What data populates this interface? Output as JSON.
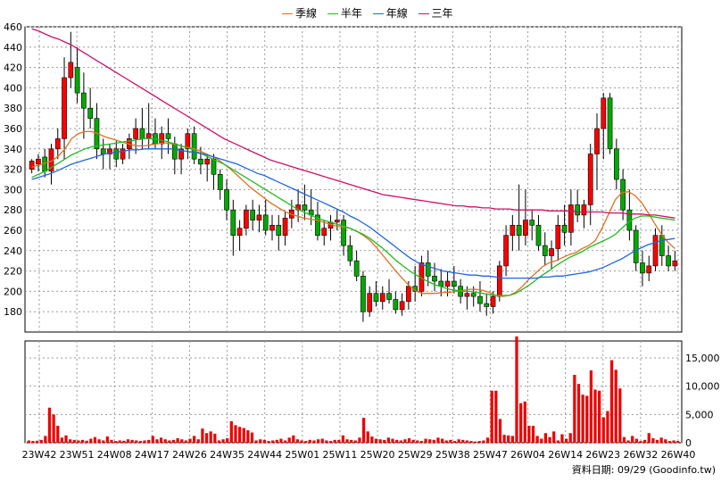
{
  "legend": {
    "ma_quarter": "季線",
    "ma_half": "半年",
    "ma_year": "年線",
    "ma_3y": "三年"
  },
  "source_label": "資料日期: 09/29 (Goodinfo.tw)",
  "colors": {
    "up": "#ff0000",
    "down": "#00aa00",
    "ma_quarter": "#e07020",
    "ma_half": "#22bb22",
    "ma_year": "#2266dd",
    "ma_3y": "#cc1166",
    "volume": "#ee0000",
    "grid": "#999999"
  },
  "chart_data": [
    {
      "type": "line",
      "title": "",
      "x_ticks": [
        "23W42",
        "23W51",
        "24W08",
        "24W17",
        "24W26",
        "24W35",
        "24W44",
        "25W01",
        "25W11",
        "25W20",
        "25W29",
        "25W38",
        "25W47",
        "26W04",
        "26W14",
        "26W23",
        "26W32",
        "26W40"
      ],
      "y_ticks": [
        180,
        200,
        220,
        240,
        260,
        280,
        300,
        320,
        340,
        360,
        380,
        400,
        420,
        440,
        460
      ],
      "ylim": [
        160,
        460
      ],
      "grid": true,
      "legend_position": "top",
      "candles_note": "weekly OHLC candlesticks",
      "candles": [
        [
          320,
          330,
          316,
          328
        ],
        [
          325,
          335,
          318,
          330
        ],
        [
          332,
          340,
          312,
          318
        ],
        [
          318,
          345,
          305,
          340
        ],
        [
          340,
          360,
          330,
          350
        ],
        [
          350,
          430,
          330,
          410
        ],
        [
          410,
          455,
          400,
          425
        ],
        [
          420,
          440,
          385,
          395
        ],
        [
          395,
          415,
          350,
          380
        ],
        [
          380,
          400,
          360,
          370
        ],
        [
          370,
          385,
          330,
          340
        ],
        [
          340,
          350,
          320,
          335
        ],
        [
          335,
          345,
          320,
          340
        ],
        [
          340,
          348,
          322,
          330
        ],
        [
          330,
          345,
          325,
          340
        ],
        [
          340,
          355,
          330,
          350
        ],
        [
          350,
          370,
          335,
          360
        ],
        [
          360,
          380,
          340,
          350
        ],
        [
          350,
          385,
          340,
          355
        ],
        [
          355,
          370,
          340,
          345
        ],
        [
          345,
          362,
          330,
          355
        ],
        [
          355,
          370,
          335,
          350
        ],
        [
          345,
          352,
          315,
          330
        ],
        [
          330,
          345,
          315,
          340
        ],
        [
          340,
          360,
          330,
          355
        ],
        [
          355,
          362,
          325,
          330
        ],
        [
          330,
          342,
          315,
          325
        ],
        [
          325,
          335,
          308,
          330
        ],
        [
          330,
          335,
          300,
          315
        ],
        [
          315,
          320,
          290,
          300
        ],
        [
          300,
          310,
          270,
          280
        ],
        [
          280,
          290,
          235,
          255
        ],
        [
          255,
          270,
          240,
          262
        ],
        [
          262,
          285,
          255,
          280
        ],
        [
          280,
          290,
          260,
          270
        ],
        [
          270,
          285,
          258,
          275
        ],
        [
          275,
          290,
          255,
          260
        ],
        [
          260,
          275,
          250,
          265
        ],
        [
          265,
          275,
          240,
          255
        ],
        [
          255,
          278,
          245,
          272
        ],
        [
          272,
          290,
          262,
          280
        ],
        [
          280,
          300,
          268,
          285
        ],
        [
          285,
          305,
          270,
          280
        ],
        [
          280,
          300,
          265,
          275
        ],
        [
          275,
          288,
          250,
          255
        ],
        [
          255,
          270,
          245,
          262
        ],
        [
          262,
          275,
          250,
          268
        ],
        [
          268,
          280,
          260,
          270
        ],
        [
          270,
          275,
          235,
          245
        ],
        [
          245,
          255,
          225,
          230
        ],
        [
          230,
          240,
          210,
          215
        ],
        [
          215,
          220,
          170,
          180
        ],
        [
          180,
          205,
          175,
          198
        ],
        [
          198,
          210,
          185,
          190
        ],
        [
          190,
          205,
          182,
          198
        ],
        [
          198,
          212,
          188,
          192
        ],
        [
          192,
          200,
          178,
          182
        ],
        [
          182,
          198,
          176,
          190
        ],
        [
          190,
          210,
          182,
          205
        ],
        [
          205,
          225,
          190,
          200
        ],
        [
          200,
          235,
          195,
          228
        ],
        [
          228,
          240,
          205,
          215
        ],
        [
          215,
          228,
          200,
          210
        ],
        [
          210,
          222,
          195,
          205
        ],
        [
          205,
          220,
          195,
          210
        ],
        [
          210,
          225,
          198,
          205
        ],
        [
          205,
          212,
          188,
          195
        ],
        [
          195,
          205,
          182,
          198
        ],
        [
          198,
          205,
          185,
          195
        ],
        [
          195,
          210,
          180,
          188
        ],
        [
          188,
          198,
          176,
          185
        ],
        [
          185,
          200,
          178,
          195
        ],
        [
          195,
          230,
          190,
          225
        ],
        [
          225,
          265,
          215,
          255
        ],
        [
          255,
          275,
          240,
          265
        ],
        [
          265,
          305,
          240,
          255
        ],
        [
          255,
          300,
          245,
          270
        ],
        [
          270,
          280,
          250,
          265
        ],
        [
          265,
          275,
          240,
          245
        ],
        [
          245,
          258,
          225,
          235
        ],
        [
          235,
          250,
          222,
          242
        ],
        [
          242,
          275,
          230,
          265
        ],
        [
          265,
          285,
          245,
          258
        ],
        [
          258,
          300,
          245,
          285
        ],
        [
          285,
          300,
          268,
          275
        ],
        [
          275,
          290,
          262,
          285
        ],
        [
          285,
          345,
          265,
          335
        ],
        [
          335,
          375,
          300,
          360
        ],
        [
          360,
          395,
          330,
          390
        ],
        [
          390,
          395,
          335,
          340
        ],
        [
          340,
          350,
          300,
          310
        ],
        [
          310,
          320,
          270,
          280
        ],
        [
          280,
          300,
          250,
          260
        ],
        [
          260,
          265,
          220,
          228
        ],
        [
          228,
          240,
          205,
          218
        ],
        [
          218,
          235,
          210,
          225
        ],
        [
          225,
          262,
          220,
          255
        ],
        [
          255,
          265,
          225,
          235
        ],
        [
          235,
          245,
          220,
          225
        ],
        [
          225,
          240,
          220,
          230
        ]
      ],
      "series": [
        {
          "name": "季線",
          "values": [
            322,
            324,
            326,
            328,
            333,
            340,
            350,
            355,
            357,
            357,
            355,
            352,
            350,
            348,
            346,
            344,
            343,
            343,
            344,
            345,
            346,
            345,
            344,
            342,
            341,
            339,
            336,
            333,
            330,
            325,
            320,
            314,
            308,
            302,
            297,
            292,
            287,
            283,
            279,
            276,
            274,
            272,
            271,
            270,
            268,
            266,
            264,
            263,
            262,
            259,
            255,
            250,
            243,
            235,
            227,
            219,
            212,
            205,
            200,
            198,
            198,
            198,
            199,
            199,
            200,
            201,
            202,
            202,
            201,
            199,
            196,
            195,
            196,
            199,
            205,
            212,
            218,
            224,
            228,
            230,
            233,
            236,
            238,
            242,
            245,
            250,
            262,
            276,
            290,
            297,
            298,
            294,
            287,
            277,
            266,
            256,
            248,
            242
          ]
        },
        {
          "name": "半年",
          "values": [
            312,
            315,
            318,
            322,
            326,
            330,
            334,
            337,
            340,
            342,
            343,
            344,
            345,
            346,
            347,
            348,
            349,
            350,
            350,
            349,
            348,
            346,
            344,
            342,
            340,
            337,
            334,
            331,
            328,
            325,
            321,
            317,
            313,
            309,
            305,
            301,
            297,
            293,
            289,
            285,
            281,
            278,
            275,
            272,
            270,
            268,
            266,
            264,
            262,
            259,
            256,
            252,
            247,
            242,
            236,
            230,
            225,
            220,
            216,
            212,
            209,
            206,
            204,
            202,
            201,
            200,
            200,
            199,
            198,
            197,
            196,
            196,
            196,
            198,
            202,
            206,
            211,
            216,
            220,
            225,
            229,
            233,
            236,
            239,
            243,
            246,
            249,
            252,
            256,
            262,
            268,
            272,
            274,
            274,
            273,
            272,
            271,
            270
          ]
        },
        {
          "name": "年線",
          "values": [
            310,
            312,
            314,
            316,
            319,
            322,
            325,
            327,
            329,
            331,
            333,
            335,
            336,
            337,
            338,
            339,
            339,
            340,
            340,
            340,
            340,
            340,
            339,
            338,
            337,
            336,
            335,
            333,
            331,
            329,
            327,
            325,
            322,
            319,
            316,
            314,
            311,
            308,
            305,
            302,
            299,
            296,
            293,
            290,
            287,
            284,
            281,
            278,
            274,
            271,
            267,
            263,
            258,
            253,
            248,
            243,
            238,
            233,
            229,
            226,
            224,
            222,
            220,
            219,
            218,
            217,
            216,
            216,
            215,
            215,
            214,
            213,
            213,
            213,
            213,
            213,
            213,
            214,
            214,
            215,
            215,
            216,
            217,
            218,
            219,
            221,
            223,
            226,
            229,
            232,
            236,
            240,
            243,
            246,
            248,
            250,
            251,
            252
          ]
        },
        {
          "name": "三年",
          "values": [
            458,
            456,
            453,
            450,
            448,
            445,
            442,
            438,
            434,
            430,
            426,
            422,
            418,
            414,
            410,
            406,
            402,
            398,
            394,
            390,
            386,
            382,
            378,
            374,
            370,
            366,
            362,
            358,
            354,
            350,
            347,
            344,
            341,
            338,
            335,
            332,
            329,
            327,
            325,
            323,
            321,
            319,
            317,
            315,
            313,
            311,
            309,
            307,
            305,
            303,
            301,
            299,
            297,
            295,
            294,
            293,
            292,
            291,
            290,
            289,
            288,
            287,
            286,
            285,
            284,
            284,
            283,
            283,
            282,
            282,
            281,
            281,
            281,
            280,
            280,
            280,
            280,
            280,
            279,
            279,
            279,
            279,
            278,
            278,
            278,
            278,
            278,
            277,
            277,
            277,
            276,
            276,
            276,
            275,
            275,
            274,
            273,
            272
          ]
        }
      ]
    },
    {
      "type": "bar",
      "title": "",
      "y_ticks": [
        0,
        5000,
        10000,
        15000
      ],
      "y_tick_labels": [
        "0",
        "5,000",
        "10,000",
        "15,000"
      ],
      "ylim": [
        0,
        18000
      ],
      "grid": true,
      "values": [
        400,
        300,
        350,
        500,
        1200,
        6200,
        5000,
        3000,
        900,
        1300,
        600,
        500,
        400,
        500,
        350,
        700,
        1000,
        600,
        400,
        1100,
        500,
        300,
        400,
        350,
        600,
        500,
        400,
        300,
        400,
        500,
        1200,
        600,
        900,
        600,
        400,
        500,
        800,
        600,
        400,
        700,
        1200,
        600,
        2500,
        1700,
        2000,
        1600,
        400,
        600,
        800,
        3800,
        3100,
        2800,
        2600,
        2200,
        1800,
        400,
        600,
        500,
        300,
        400,
        500,
        700,
        400,
        900,
        1300,
        600,
        400,
        300,
        500,
        400,
        600,
        700,
        400,
        300,
        500,
        500,
        1300,
        600,
        500,
        400,
        900,
        4400,
        2000,
        1100,
        700,
        600,
        500,
        900,
        700,
        500,
        400,
        600,
        800,
        500,
        400,
        300,
        700,
        600,
        500,
        900,
        700,
        400,
        500,
        300,
        600,
        500,
        400,
        300,
        200,
        300,
        400,
        900,
        9200,
        9200,
        4200,
        1400,
        1300,
        1200,
        18800,
        7000,
        7300,
        3000,
        3000,
        1200,
        700,
        1700,
        1000,
        2000,
        400,
        1500,
        700,
        1700,
        12000,
        10400,
        8500,
        8300,
        12800,
        9400,
        9200,
        4500,
        5600,
        14600,
        12900,
        9600,
        1000,
        400,
        1200,
        700,
        300,
        500,
        1700,
        800,
        500,
        900,
        600,
        300,
        400,
        300
      ]
    }
  ]
}
